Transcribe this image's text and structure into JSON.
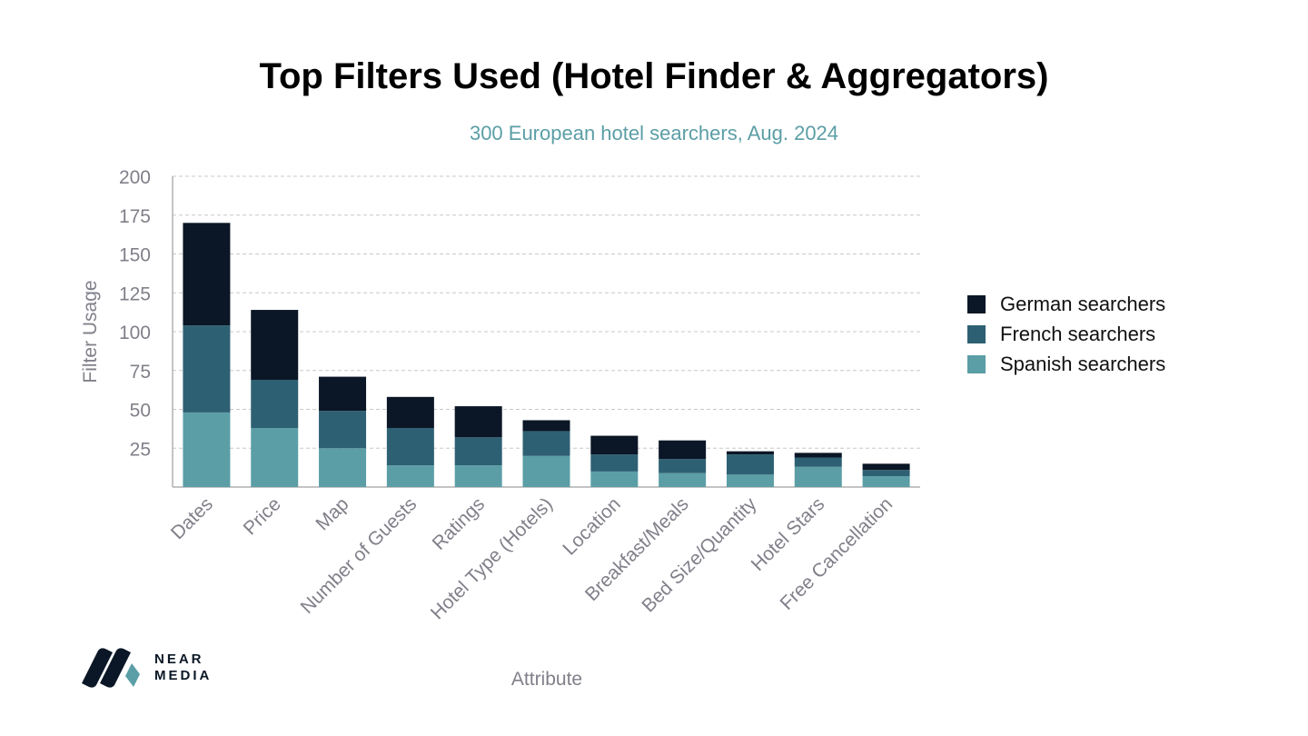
{
  "colors": {
    "german": "#0b1726",
    "french": "#2e6073",
    "spanish": "#5b9ea6",
    "subtitle": "#5b9ea6",
    "axis_text": "#80808a",
    "grid": "#c8c8c8"
  },
  "logo": {
    "icon": "near-media-logo-icon",
    "line1": "NEAR",
    "line2": "MEDIA"
  },
  "chart_data": {
    "type": "bar",
    "stacked": true,
    "title": "Top Filters Used (Hotel Finder & Aggregators)",
    "subtitle": "300 European hotel searchers, Aug. 2024",
    "xlabel": "Attribute",
    "ylabel": "Filter Usage",
    "ylim": [
      0,
      200
    ],
    "yticks": [
      25,
      50,
      75,
      100,
      125,
      150,
      175,
      200
    ],
    "grid": true,
    "legend_position": "right",
    "categories": [
      "Dates",
      "Price",
      "Map",
      "Number of Guests",
      "Ratings",
      "Hotel Type (Hotels)",
      "Location",
      "Breakfast/Meals",
      "Bed Size/Quantity",
      "Hotel Stars",
      "Free Cancellation"
    ],
    "series": [
      {
        "name": "Spanish searchers",
        "values": [
          48,
          38,
          25,
          14,
          14,
          20,
          10,
          9,
          8,
          13,
          7
        ]
      },
      {
        "name": "French searchers",
        "values": [
          56,
          31,
          24,
          24,
          18,
          16,
          11,
          9,
          13,
          6,
          4
        ]
      },
      {
        "name": "German searchers",
        "values": [
          66,
          45,
          22,
          20,
          20,
          7,
          12,
          12,
          2,
          3,
          4
        ]
      }
    ],
    "legend_order": [
      "German searchers",
      "French searchers",
      "Spanish searchers"
    ]
  }
}
